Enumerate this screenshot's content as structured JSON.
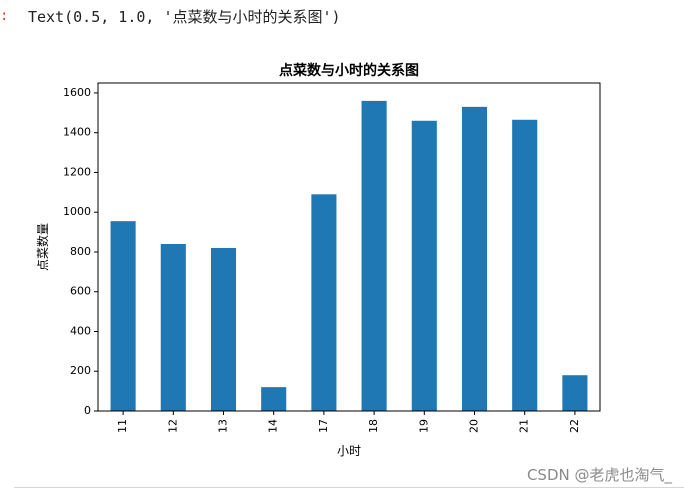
{
  "cell": {
    "prompt_marker": ":",
    "output_text": "Text(0.5, 1.0, '点菜数与小时的关系图')"
  },
  "watermark": "CSDN @老虎也淘气_",
  "chart_data": {
    "type": "bar",
    "title": "点菜数与小时的关系图",
    "xlabel": "小时",
    "ylabel": "点菜数量",
    "categories": [
      "11",
      "12",
      "13",
      "14",
      "17",
      "18",
      "19",
      "20",
      "21",
      "22"
    ],
    "values": [
      955,
      840,
      820,
      120,
      1090,
      1560,
      1460,
      1530,
      1465,
      180
    ],
    "ylim": [
      0,
      1650
    ],
    "yticks": [
      0,
      200,
      400,
      600,
      800,
      1000,
      1200,
      1400,
      1600
    ],
    "grid": false,
    "bar_color": "#1f77b4"
  }
}
